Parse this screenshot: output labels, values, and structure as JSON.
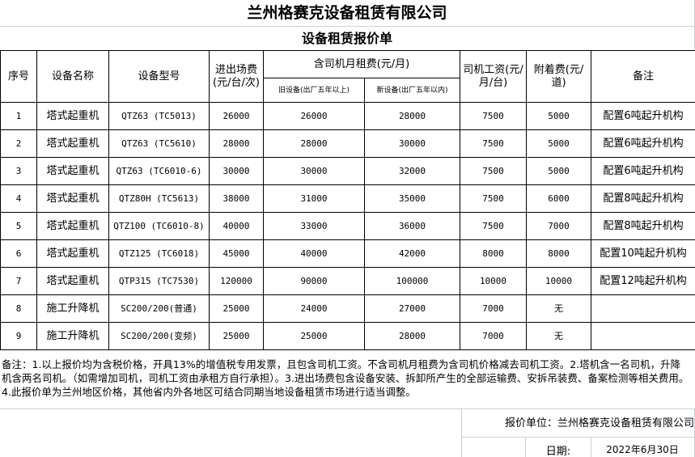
{
  "company": "兰州格赛克设备租赁有限公司",
  "doc_title": "设备租赁报价单",
  "headers": {
    "seq": "序号",
    "name": "设备名称",
    "model": "设备型号",
    "entry_fee": "进出场费(元/台/次)",
    "monthly_rent": "含司机月租费(元/月)",
    "old_equipment": "旧设备(出厂五年以上)",
    "new_equipment": "新设备(出厂五年以内)",
    "driver_wage": "司机工资(元/月/台)",
    "attach_fee": "附着费(元/道)",
    "remark": "备注"
  },
  "rows": [
    {
      "seq": "1",
      "name": "塔式起重机",
      "model": "QTZ63 (TC5013)",
      "entry": "26000",
      "old": "26000",
      "new": "28000",
      "wage": "7500",
      "attach": "5000",
      "remark": "配置6吨起升机构"
    },
    {
      "seq": "2",
      "name": "塔式起重机",
      "model": "QTZ63 (TC5610)",
      "entry": "28000",
      "old": "28000",
      "new": "30000",
      "wage": "7500",
      "attach": "5000",
      "remark": "配置6吨起升机构"
    },
    {
      "seq": "3",
      "name": "塔式起重机",
      "model": "QTZ63 (TC6010-6)",
      "entry": "30000",
      "old": "30000",
      "new": "32000",
      "wage": "7500",
      "attach": "5000",
      "remark": "配置6吨起升机构"
    },
    {
      "seq": "4",
      "name": "塔式起重机",
      "model": "QTZ80H (TC5613)",
      "entry": "38000",
      "old": "31000",
      "new": "35000",
      "wage": "7500",
      "attach": "6000",
      "remark": "配置8吨起升机构"
    },
    {
      "seq": "5",
      "name": "塔式起重机",
      "model": "QTZ100 (TC6010-8)",
      "entry": "40000",
      "old": "33000",
      "new": "36000",
      "wage": "7500",
      "attach": "7000",
      "remark": "配置8吨起升机构"
    },
    {
      "seq": "6",
      "name": "塔式起重机",
      "model": "QTZ125 (TC6018)",
      "entry": "45000",
      "old": "40000",
      "new": "42000",
      "wage": "8000",
      "attach": "8000",
      "remark": "配置10吨起升机构"
    },
    {
      "seq": "7",
      "name": "塔式起重机",
      "model": "QTP315 (TC7530)",
      "entry": "120000",
      "old": "90000",
      "new": "100000",
      "wage": "10000",
      "attach": "10000",
      "remark": "配置12吨起升机构"
    },
    {
      "seq": "8",
      "name": "施工升降机",
      "model": "SC200/200(普通)",
      "entry": "25000",
      "old": "24000",
      "new": "27000",
      "wage": "7000",
      "attach": "无",
      "remark": ""
    },
    {
      "seq": "9",
      "name": "施工升降机",
      "model": "SC200/200(变频)",
      "entry": "25000",
      "old": "25000",
      "new": "28000",
      "wage": "7000",
      "attach": "无",
      "remark": ""
    }
  ],
  "note": "备注：1.以上报价均为含税价格，开具13%的增值税专用发票，且包含司机工资。不含司机月租费为含司机价格减去司机工资。2.塔机含一名司机，升降机含两名司机。（如需增加司机，司机工资由承租方自行承担）。3.进出场费包含设备安装、拆卸所产生的全部运输费、安拆吊装费、备案检测等相关费用。4.此报价单为兰州地区价格，其他省内外各地区可结合同期当地设备租赁市场进行适当调整。",
  "footer": {
    "quote_unit": "报价单位：兰州格赛克设备租赁有限公司",
    "date_label": "日期:",
    "date": "2022年6月30日"
  }
}
